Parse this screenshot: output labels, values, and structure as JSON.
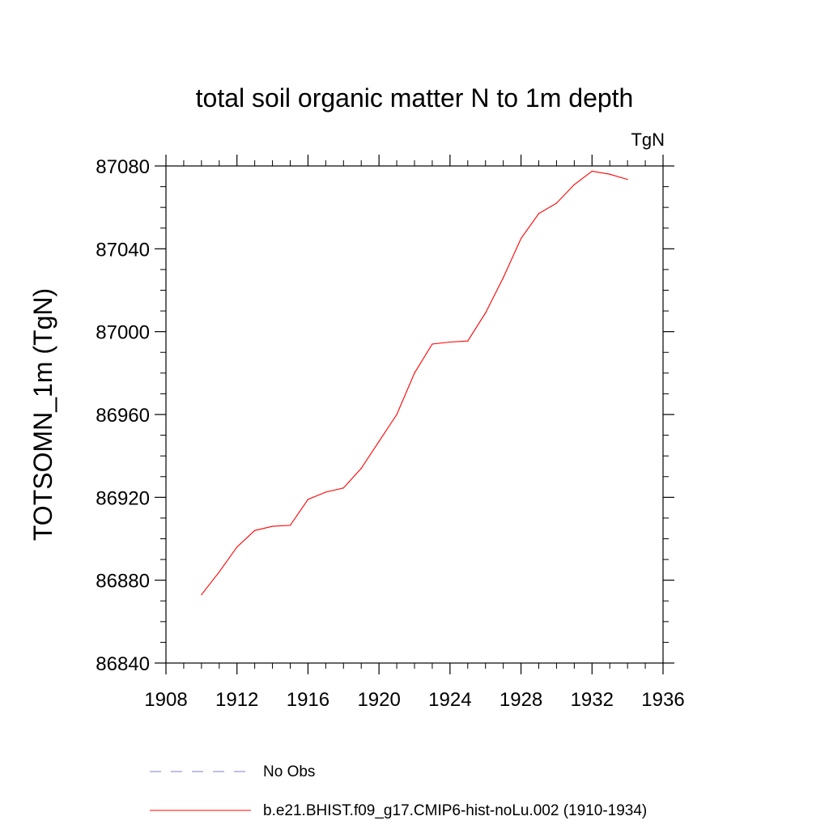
{
  "chart_data": {
    "type": "line",
    "title": "total soil organic matter N to 1m depth",
    "units_label": "TgN",
    "xlabel": "",
    "ylabel": "TOTSOMN_1m  (TgN)",
    "xlim": [
      1908,
      1936
    ],
    "ylim": [
      86840,
      87080
    ],
    "xticks": [
      "1908",
      "1912",
      "1916",
      "1920",
      "1924",
      "1928",
      "1932",
      "1936"
    ],
    "yticks": [
      "86840",
      "86880",
      "86920",
      "86960",
      "87000",
      "87040",
      "87080"
    ],
    "grid": false,
    "series": [
      {
        "name": "b.e21.BHIST.f09_g17.CMIP6-hist-noLu.002 (1910-1934)",
        "color": "#ff0000",
        "style": "solid",
        "x": [
          1910,
          1911,
          1912,
          1913,
          1914,
          1915,
          1916,
          1917,
          1918,
          1919,
          1920,
          1921,
          1922,
          1923,
          1924,
          1925,
          1926,
          1927,
          1928,
          1929,
          1930,
          1931,
          1932,
          1933,
          1934
        ],
        "y": [
          86873,
          86884,
          86896,
          86904,
          86906,
          86906.5,
          86919,
          86922.5,
          86924.5,
          86934,
          86947,
          86960,
          86980,
          86994,
          86995,
          86995.5,
          87009,
          87026,
          87045,
          87057,
          87062,
          87071,
          87077.5,
          87076,
          87073.5
        ]
      }
    ],
    "legend": {
      "placement": "bottom",
      "entries": [
        {
          "label": "No Obs",
          "color": "#8080c0",
          "style": "dashed"
        },
        {
          "label": "b.e21.BHIST.f09_g17.CMIP6-hist-noLu.002 (1910-1934)",
          "color": "#ff0000",
          "style": "solid"
        }
      ]
    }
  }
}
